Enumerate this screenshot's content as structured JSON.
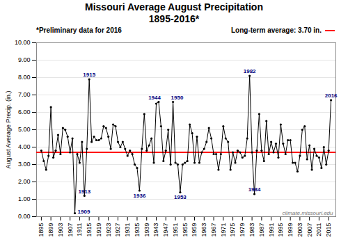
{
  "chart_data": {
    "type": "line",
    "title": "Missouri Average August Precipitation\n1895-2016*",
    "subtitle": "*Preliminary data for 2016",
    "ylabel": "August Average Precip. (in.)",
    "watermark": "climate.missouri.edu",
    "marker": "circle",
    "grid": true,
    "reference_line": {
      "value": 3.7,
      "label": "Long-term average: 3.70 in.",
      "color": "#FF0000"
    },
    "x": [
      1895,
      1896,
      1897,
      1898,
      1899,
      1900,
      1901,
      1902,
      1903,
      1904,
      1905,
      1906,
      1907,
      1908,
      1909,
      1910,
      1911,
      1912,
      1913,
      1914,
      1915,
      1916,
      1917,
      1918,
      1919,
      1920,
      1921,
      1922,
      1923,
      1924,
      1925,
      1926,
      1927,
      1928,
      1929,
      1930,
      1931,
      1932,
      1933,
      1934,
      1935,
      1936,
      1937,
      1938,
      1939,
      1940,
      1941,
      1942,
      1943,
      1944,
      1945,
      1946,
      1947,
      1948,
      1949,
      1950,
      1951,
      1952,
      1953,
      1954,
      1955,
      1956,
      1957,
      1958,
      1959,
      1960,
      1961,
      1962,
      1963,
      1964,
      1965,
      1966,
      1967,
      1968,
      1969,
      1970,
      1971,
      1972,
      1973,
      1974,
      1975,
      1976,
      1977,
      1978,
      1979,
      1980,
      1981,
      1982,
      1983,
      1984,
      1985,
      1986,
      1987,
      1988,
      1989,
      1990,
      1991,
      1992,
      1993,
      1994,
      1995,
      1996,
      1997,
      1998,
      1999,
      2000,
      2001,
      2002,
      2003,
      2004,
      2005,
      2006,
      2007,
      2008,
      2009,
      2010,
      2011,
      2012,
      2013,
      2014,
      2015,
      2016
    ],
    "values": [
      3.8,
      3.2,
      2.7,
      3.5,
      6.3,
      3.4,
      3.8,
      4.7,
      3.6,
      5.1,
      5.0,
      4.6,
      3.7,
      4.5,
      0.2,
      3.6,
      3.1,
      4.3,
      1.2,
      3.9,
      7.9,
      4.3,
      4.6,
      4.4,
      4.4,
      4.5,
      5.2,
      5.1,
      4.6,
      3.9,
      5.3,
      5.2,
      4.3,
      4.0,
      4.3,
      3.9,
      3.5,
      3.8,
      3.6,
      3.0,
      2.8,
      1.5,
      3.9,
      5.9,
      3.8,
      4.1,
      4.5,
      3.1,
      6.5,
      6.6,
      5.2,
      3.2,
      3.8,
      5.0,
      3.0,
      6.6,
      3.1,
      3.0,
      1.4,
      3.0,
      3.1,
      3.2,
      5.3,
      4.8,
      3.1,
      4.6,
      3.1,
      3.7,
      3.9,
      4.3,
      5.1,
      4.5,
      3.6,
      3.6,
      2.7,
      3.6,
      5.2,
      4.5,
      4.3,
      2.7,
      3.7,
      3.1,
      3.8,
      3.7,
      3.4,
      3.5,
      4.5,
      8.1,
      3.7,
      1.3,
      3.8,
      5.9,
      3.8,
      3.2,
      5.5,
      3.6,
      4.3,
      3.7,
      4.2,
      3.4,
      5.3,
      4.2,
      3.6,
      4.4,
      4.4,
      3.1,
      3.1,
      2.6,
      3.5,
      5.0,
      5.2,
      3.3,
      4.1,
      2.7,
      3.9,
      3.5,
      3.4,
      2.8,
      4.0,
      3.0,
      3.8,
      6.7
    ],
    "xlim": [
      1893,
      2018
    ],
    "xticks": [
      1895,
      1899,
      1903,
      1907,
      1911,
      1915,
      1919,
      1923,
      1927,
      1931,
      1935,
      1939,
      1943,
      1947,
      1951,
      1955,
      1959,
      1963,
      1967,
      1971,
      1975,
      1979,
      1983,
      1987,
      1991,
      1995,
      1999,
      2003,
      2007,
      2011,
      2015
    ],
    "ylim": [
      0.0,
      10.0
    ],
    "yticks": [
      {
        "value": 0,
        "label": "0.00"
      },
      {
        "value": 1,
        "label": "1.00"
      },
      {
        "value": 2,
        "label": "2.00"
      },
      {
        "value": 3,
        "label": "3.00"
      },
      {
        "value": 4,
        "label": "4.00"
      },
      {
        "value": 5,
        "label": "5.00"
      },
      {
        "value": 6,
        "label": "6.00"
      },
      {
        "value": 7,
        "label": "7.00"
      },
      {
        "value": 8,
        "label": "8.00"
      },
      {
        "value": 9,
        "label": "9.00"
      },
      {
        "value": 10,
        "label": "10.00"
      }
    ],
    "annotations": [
      {
        "text": "1909",
        "x": 1909,
        "y": 0.2,
        "position": "right"
      },
      {
        "text": "1913",
        "x": 1913,
        "y": 1.2,
        "position": "above"
      },
      {
        "text": "1915",
        "x": 1915,
        "y": 7.9,
        "position": "above"
      },
      {
        "text": "1936",
        "x": 1936,
        "y": 1.5,
        "position": "below"
      },
      {
        "text": "1944",
        "x": 1944,
        "y": 6.6,
        "position": "above left"
      },
      {
        "text": "1950",
        "x": 1950,
        "y": 6.6,
        "position": "above right"
      },
      {
        "text": "1953",
        "x": 1953,
        "y": 1.4,
        "position": "below"
      },
      {
        "text": "1982",
        "x": 1982,
        "y": 8.1,
        "position": "above"
      },
      {
        "text": "1984",
        "x": 1984,
        "y": 1.3,
        "position": "above"
      },
      {
        "text": "2016",
        "x": 2016,
        "y": 6.7,
        "position": "above"
      }
    ]
  }
}
